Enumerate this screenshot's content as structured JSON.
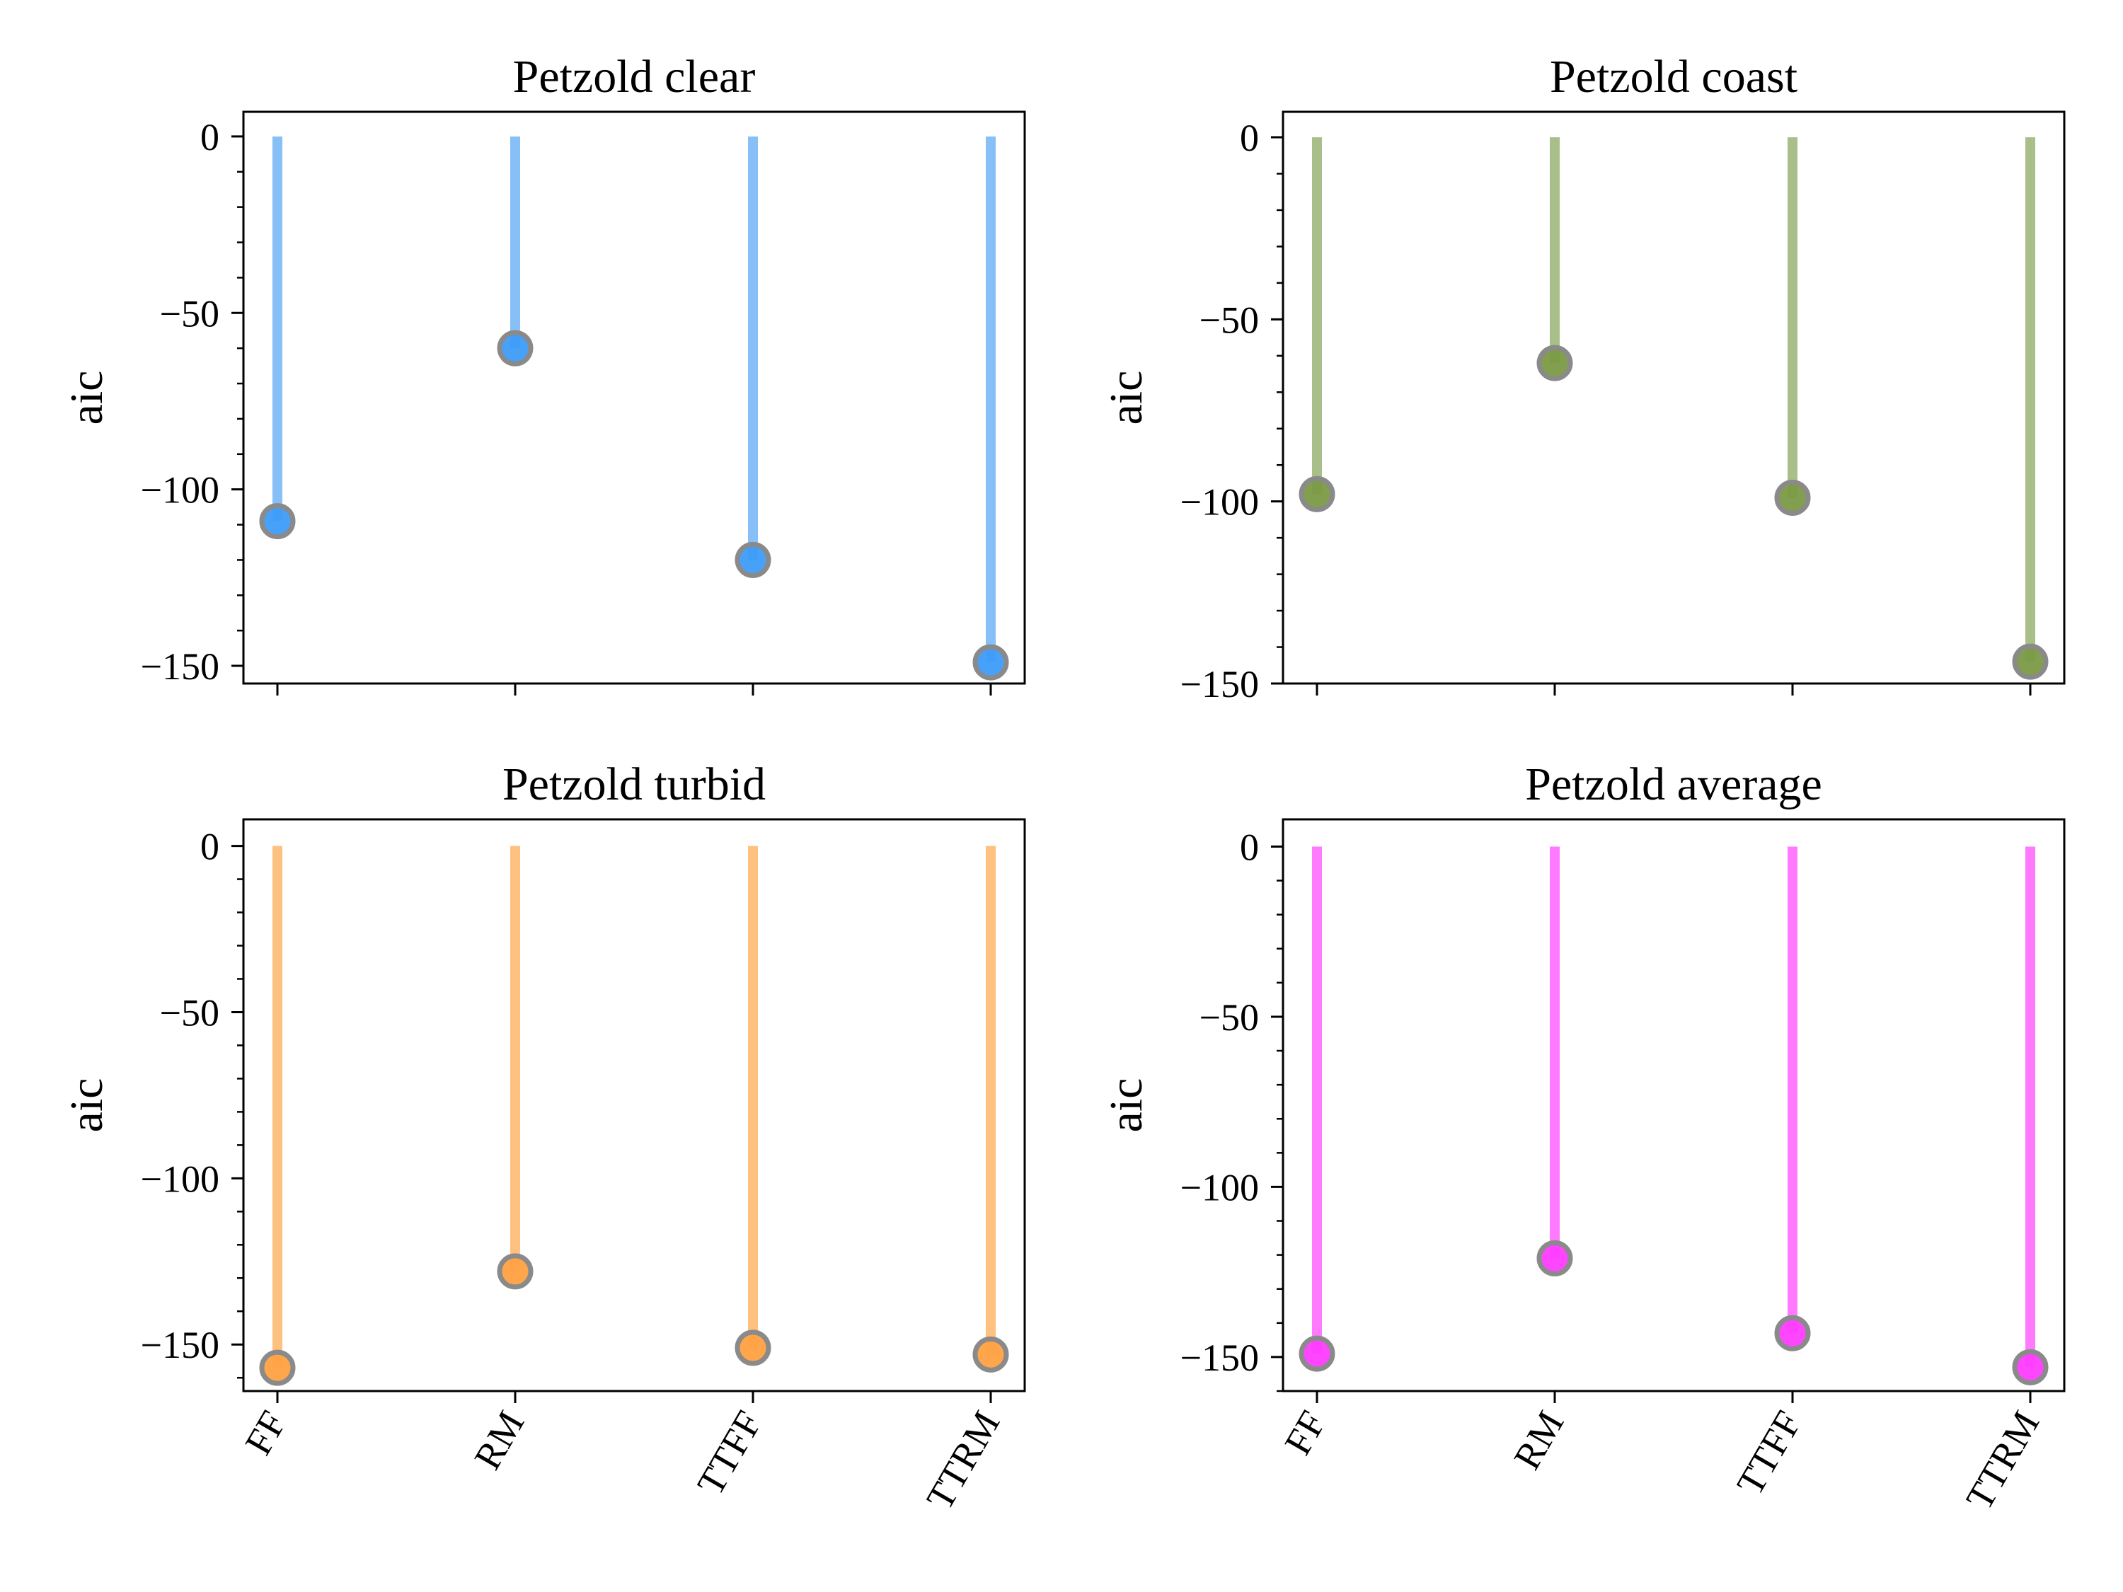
{
  "chart_data": [
    {
      "type": "lollipop",
      "title": "Petzold clear",
      "ylabel": "aic",
      "categories": [
        "FF",
        "RM",
        "TTFF",
        "TTRM"
      ],
      "values": [
        -109,
        -60,
        -120,
        -149
      ],
      "ylim": [
        -155,
        7
      ],
      "yticks": [
        0,
        -50,
        -100,
        -150
      ],
      "ytick_labels": [
        "0",
        "−50",
        "−100",
        "−150"
      ],
      "stem_color": "#86c0f6",
      "marker_color": "#3d9cf8",
      "show_category_labels": false
    },
    {
      "type": "lollipop",
      "title": "Petzold coast",
      "ylabel": "aic",
      "categories": [
        "FF",
        "RM",
        "TTFF",
        "TTRM"
      ],
      "values": [
        -98,
        -62,
        -99,
        -144
      ],
      "ylim": [
        -150,
        7
      ],
      "yticks": [
        0,
        -50,
        -100,
        -150
      ],
      "ytick_labels": [
        "0",
        "−50",
        "−100",
        "−150"
      ],
      "stem_color": "#a9bf8a",
      "marker_color": "#7a9a45",
      "show_category_labels": false
    },
    {
      "type": "lollipop",
      "title": "Petzold turbid",
      "ylabel": "aic",
      "categories": [
        "FF",
        "RM",
        "TTFF",
        "TTRM"
      ],
      "values": [
        -157,
        -128,
        -151,
        -153
      ],
      "ylim": [
        -164,
        8
      ],
      "yticks": [
        0,
        -50,
        -100,
        -150
      ],
      "ytick_labels": [
        "0",
        "−50",
        "−100",
        "−150"
      ],
      "stem_color": "#ffc180",
      "marker_color": "#ffa142",
      "show_category_labels": true
    },
    {
      "type": "lollipop",
      "title": "Petzold average",
      "ylabel": "aic",
      "categories": [
        "FF",
        "RM",
        "TTFF",
        "TTRM"
      ],
      "values": [
        -149,
        -121,
        -143,
        -153
      ],
      "ylim": [
        -160,
        8
      ],
      "yticks": [
        0,
        -50,
        -100,
        -150
      ],
      "ytick_labels": [
        "0",
        "−50",
        "−100",
        "−150"
      ],
      "stem_color": "#ff7aff",
      "marker_color": "#ff3cff",
      "show_category_labels": true
    }
  ]
}
